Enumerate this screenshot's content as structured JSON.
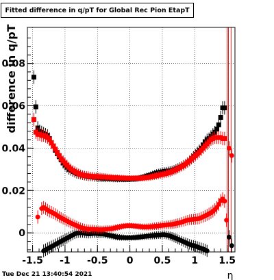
{
  "title": "Fitted difference in q/pT for Global Rec Pion EtapT",
  "timestamp": "Tue Dec 21 13:40:54 2021",
  "chart_data": {
    "type": "scatter",
    "xlabel": "η",
    "ylabel": "difference in q/pT",
    "xlim": [
      -1.58,
      1.62
    ],
    "ylim": [
      -0.009,
      0.097
    ],
    "xticks": [
      -1.5,
      -1,
      -0.5,
      0,
      0.5,
      1,
      1.5
    ],
    "xtick_labels": [
      "-1.5",
      "-1",
      "-0.5",
      "0",
      "0.5",
      "1",
      "1.5"
    ],
    "yticks": [
      0,
      0.02,
      0.04,
      0.06,
      0.08
    ],
    "ytick_labels": [
      "0",
      "0.02",
      "0.04",
      "0.06",
      "0.08"
    ],
    "grid": true,
    "vertical_lines": [
      {
        "x": 1.5,
        "color": "#dd0000"
      },
      {
        "x": 1.52,
        "color": "#dd0000"
      },
      {
        "x": 1.56,
        "color": "#dd0000"
      }
    ],
    "series": [
      {
        "color": "#000000",
        "marker": "square",
        "x": [
          -1.48,
          -1.45,
          -1.42,
          -1.39,
          -1.36,
          -1.33,
          -1.3,
          -1.27,
          -1.24,
          -1.21,
          -1.18,
          -1.15,
          -1.12,
          -1.09,
          -1.06,
          -1.03,
          -1.0,
          -0.97,
          -0.94,
          -0.91,
          -0.88,
          -0.85,
          -0.82,
          -0.79,
          -0.76,
          -0.73,
          -0.7,
          -0.67,
          -0.64,
          -0.61,
          -0.58,
          -0.55,
          -0.52,
          -0.49,
          -0.46,
          -0.43,
          -0.4,
          -0.37,
          -0.34,
          -0.31,
          -0.28,
          -0.25,
          -0.22,
          -0.19,
          -0.16,
          -0.13,
          -0.1,
          -0.07,
          -0.04,
          -0.01,
          0.02,
          0.05,
          0.08,
          0.11,
          0.14,
          0.17,
          0.2,
          0.23,
          0.26,
          0.29,
          0.32,
          0.35,
          0.38,
          0.41,
          0.44,
          0.47,
          0.5,
          0.53,
          0.56,
          0.59,
          0.62,
          0.65,
          0.68,
          0.71,
          0.74,
          0.77,
          0.8,
          0.83,
          0.86,
          0.89,
          0.92,
          0.95,
          0.98,
          1.01,
          1.04,
          1.07,
          1.1,
          1.13,
          1.16,
          1.19,
          1.22,
          1.25,
          1.28,
          1.31,
          1.34,
          1.37,
          1.4,
          1.43,
          1.46
        ],
        "y": [
          0.0735,
          0.0595,
          0.0495,
          0.048,
          0.0475,
          0.047,
          0.0465,
          0.046,
          0.0445,
          0.0425,
          0.041,
          0.039,
          0.0375,
          0.036,
          0.0345,
          0.033,
          0.032,
          0.031,
          0.03,
          0.0295,
          0.029,
          0.0285,
          0.028,
          0.0278,
          0.0275,
          0.0272,
          0.027,
          0.0268,
          0.0266,
          0.0265,
          0.0264,
          0.0262,
          0.0262,
          0.026,
          0.026,
          0.0258,
          0.0258,
          0.0257,
          0.0257,
          0.0256,
          0.0256,
          0.0255,
          0.0255,
          0.0254,
          0.0254,
          0.0254,
          0.0253,
          0.0253,
          0.0253,
          0.0253,
          0.0254,
          0.0254,
          0.0255,
          0.0256,
          0.0258,
          0.026,
          0.0262,
          0.0265,
          0.0268,
          0.027,
          0.0273,
          0.0276,
          0.0279,
          0.0282,
          0.0284,
          0.0286,
          0.0288,
          0.029,
          0.0291,
          0.0292,
          0.0293,
          0.0295,
          0.0298,
          0.0302,
          0.0306,
          0.031,
          0.0315,
          0.032,
          0.0326,
          0.0333,
          0.034,
          0.035,
          0.036,
          0.037,
          0.038,
          0.039,
          0.04,
          0.0415,
          0.043,
          0.044,
          0.0445,
          0.0455,
          0.0465,
          0.0475,
          0.049,
          0.051,
          0.0545,
          0.059,
          0.059
        ]
      },
      {
        "color": "#000000",
        "marker": "circle",
        "x": [
          -1.33,
          -1.3,
          -1.27,
          -1.24,
          -1.21,
          -1.18,
          -1.15,
          -1.12,
          -1.09,
          -1.06,
          -1.03,
          -1.0,
          -0.97,
          -0.94,
          -0.91,
          -0.88,
          -0.85,
          -0.82,
          -0.79,
          -0.76,
          -0.73,
          -0.7,
          -0.67,
          -0.64,
          -0.61,
          -0.58,
          -0.55,
          -0.52,
          -0.49,
          -0.46,
          -0.43,
          -0.4,
          -0.37,
          -0.34,
          -0.31,
          -0.28,
          -0.25,
          -0.22,
          -0.19,
          -0.16,
          -0.13,
          -0.1,
          -0.07,
          -0.04,
          -0.01,
          0.02,
          0.05,
          0.08,
          0.11,
          0.14,
          0.17,
          0.2,
          0.23,
          0.26,
          0.29,
          0.32,
          0.35,
          0.38,
          0.41,
          0.44,
          0.47,
          0.5,
          0.53,
          0.56,
          0.59,
          0.62,
          0.65,
          0.68,
          0.71,
          0.74,
          0.77,
          0.8,
          0.83,
          0.86,
          0.89,
          0.92,
          0.95,
          0.98,
          1.01,
          1.04,
          1.07,
          1.1,
          1.13,
          1.16,
          1.19,
          1.53,
          1.57
        ],
        "y": [
          -0.0085,
          -0.008,
          -0.0075,
          -0.007,
          -0.0065,
          -0.006,
          -0.0055,
          -0.005,
          -0.0045,
          -0.004,
          -0.0035,
          -0.003,
          -0.0025,
          -0.002,
          -0.0015,
          -0.001,
          -0.0005,
          -0.0002,
          0.0,
          0.0,
          0.0,
          -0.0002,
          -0.0004,
          -0.0005,
          -0.0005,
          -0.0004,
          -0.0003,
          -0.0003,
          -0.0004,
          -0.0005,
          -0.0005,
          -0.0006,
          -0.0008,
          -0.001,
          -0.0012,
          -0.0014,
          -0.0016,
          -0.0018,
          -0.002,
          -0.0021,
          -0.0022,
          -0.0022,
          -0.0023,
          -0.0023,
          -0.0023,
          -0.0023,
          -0.0022,
          -0.0022,
          -0.0021,
          -0.002,
          -0.0019,
          -0.0018,
          -0.0017,
          -0.0016,
          -0.0015,
          -0.0014,
          -0.0013,
          -0.0012,
          -0.0011,
          -0.001,
          -0.001,
          -0.0008,
          -0.0008,
          -0.001,
          -0.0012,
          -0.0015,
          -0.0018,
          -0.0022,
          -0.0026,
          -0.003,
          -0.0034,
          -0.0038,
          -0.0042,
          -0.0046,
          -0.005,
          -0.0054,
          -0.0058,
          -0.006,
          -0.0063,
          -0.0066,
          -0.007,
          -0.0073,
          -0.0076,
          -0.008,
          -0.0085,
          -0.002,
          -0.006
        ]
      },
      {
        "color": "#ff0000",
        "marker": "square",
        "x": [
          -1.48,
          -1.45,
          -1.42,
          -1.39,
          -1.36,
          -1.33,
          -1.3,
          -1.27,
          -1.24,
          -1.21,
          -1.18,
          -1.15,
          -1.12,
          -1.09,
          -1.06,
          -1.03,
          -1.0,
          -0.97,
          -0.94,
          -0.91,
          -0.88,
          -0.85,
          -0.82,
          -0.79,
          -0.76,
          -0.73,
          -0.7,
          -0.67,
          -0.64,
          -0.61,
          -0.58,
          -0.55,
          -0.52,
          -0.49,
          -0.46,
          -0.43,
          -0.4,
          -0.37,
          -0.34,
          -0.31,
          -0.28,
          -0.25,
          -0.22,
          -0.19,
          -0.16,
          -0.13,
          -0.1,
          -0.07,
          -0.04,
          -0.01,
          0.02,
          0.05,
          0.08,
          0.11,
          0.14,
          0.17,
          0.2,
          0.23,
          0.26,
          0.29,
          0.32,
          0.35,
          0.38,
          0.41,
          0.44,
          0.47,
          0.5,
          0.53,
          0.56,
          0.59,
          0.62,
          0.65,
          0.68,
          0.71,
          0.74,
          0.77,
          0.8,
          0.83,
          0.86,
          0.89,
          0.92,
          0.95,
          0.98,
          1.01,
          1.04,
          1.07,
          1.1,
          1.13,
          1.16,
          1.19,
          1.22,
          1.25,
          1.28,
          1.31,
          1.34,
          1.37,
          1.4,
          1.43,
          1.46
        ],
        "y": [
          0.0535,
          0.0475,
          0.0465,
          0.0465,
          0.046,
          0.046,
          0.0455,
          0.045,
          0.044,
          0.0425,
          0.041,
          0.0395,
          0.038,
          0.0365,
          0.035,
          0.034,
          0.033,
          0.032,
          0.031,
          0.0302,
          0.0295,
          0.029,
          0.0285,
          0.028,
          0.0276,
          0.0273,
          0.0271,
          0.027,
          0.0269,
          0.0268,
          0.0267,
          0.0266,
          0.0266,
          0.0265,
          0.0265,
          0.0264,
          0.0264,
          0.0263,
          0.0262,
          0.0262,
          0.0261,
          0.026,
          0.026,
          0.026,
          0.0259,
          0.0259,
          0.0259,
          0.0258,
          0.0258,
          0.0258,
          0.0258,
          0.0258,
          0.0258,
          0.0258,
          0.0258,
          0.0258,
          0.0259,
          0.026,
          0.0261,
          0.0262,
          0.0264,
          0.0266,
          0.0268,
          0.027,
          0.0272,
          0.0274,
          0.0276,
          0.0278,
          0.028,
          0.0283,
          0.0286,
          0.029,
          0.0294,
          0.0298,
          0.0303,
          0.0308,
          0.0313,
          0.0318,
          0.0325,
          0.0333,
          0.034,
          0.0348,
          0.0356,
          0.0364,
          0.0372,
          0.038,
          0.039,
          0.04,
          0.041,
          0.042,
          0.043,
          0.044,
          0.0445,
          0.045,
          0.045,
          0.045,
          0.045,
          0.0445,
          0.0445
        ]
      },
      {
        "color": "#ff0000",
        "marker": "circle",
        "x": [
          -1.42,
          -1.36,
          -1.33,
          -1.3,
          -1.27,
          -1.24,
          -1.21,
          -1.18,
          -1.15,
          -1.12,
          -1.09,
          -1.06,
          -1.03,
          -1.0,
          -0.97,
          -0.94,
          -0.91,
          -0.88,
          -0.85,
          -0.82,
          -0.79,
          -0.76,
          -0.73,
          -0.7,
          -0.67,
          -0.64,
          -0.61,
          -0.58,
          -0.55,
          -0.52,
          -0.49,
          -0.46,
          -0.43,
          -0.4,
          -0.37,
          -0.34,
          -0.31,
          -0.28,
          -0.25,
          -0.22,
          -0.19,
          -0.16,
          -0.13,
          -0.1,
          -0.07,
          -0.04,
          -0.01,
          0.02,
          0.05,
          0.08,
          0.11,
          0.14,
          0.17,
          0.2,
          0.23,
          0.26,
          0.29,
          0.32,
          0.35,
          0.38,
          0.41,
          0.44,
          0.47,
          0.5,
          0.53,
          0.56,
          0.59,
          0.62,
          0.65,
          0.68,
          0.71,
          0.74,
          0.77,
          0.8,
          0.83,
          0.86,
          0.89,
          0.92,
          0.95,
          0.98,
          1.01,
          1.04,
          1.07,
          1.1,
          1.13,
          1.16,
          1.19,
          1.22,
          1.25,
          1.28,
          1.31,
          1.34,
          1.37,
          1.4,
          1.43,
          1.46,
          1.49,
          1.53,
          1.57
        ],
        "y": [
          0.0075,
          0.0115,
          0.012,
          0.0115,
          0.0108,
          0.0102,
          0.0098,
          0.0093,
          0.0088,
          0.0082,
          0.0076,
          0.0071,
          0.0066,
          0.0061,
          0.0056,
          0.0051,
          0.0046,
          0.0042,
          0.0038,
          0.0034,
          0.003,
          0.0026,
          0.0023,
          0.0021,
          0.0019,
          0.0018,
          0.0018,
          0.0018,
          0.0017,
          0.0016,
          0.0015,
          0.0015,
          0.0015,
          0.0016,
          0.0017,
          0.0018,
          0.0019,
          0.002,
          0.0022,
          0.0024,
          0.0026,
          0.0028,
          0.003,
          0.0032,
          0.0033,
          0.0034,
          0.0034,
          0.0034,
          0.0033,
          0.0032,
          0.0031,
          0.003,
          0.0029,
          0.0028,
          0.0028,
          0.0028,
          0.0028,
          0.0029,
          0.003,
          0.0031,
          0.0032,
          0.0033,
          0.0034,
          0.0035,
          0.0036,
          0.0037,
          0.0038,
          0.0039,
          0.004,
          0.0042,
          0.0044,
          0.0046,
          0.0048,
          0.0051,
          0.0054,
          0.0057,
          0.006,
          0.0062,
          0.0063,
          0.0064,
          0.0065,
          0.0066,
          0.0068,
          0.0072,
          0.0076,
          0.008,
          0.0085,
          0.009,
          0.0095,
          0.0102,
          0.011,
          0.012,
          0.0135,
          0.0152,
          0.016,
          0.015,
          0.006,
          0.04,
          0.0365
        ]
      }
    ]
  }
}
